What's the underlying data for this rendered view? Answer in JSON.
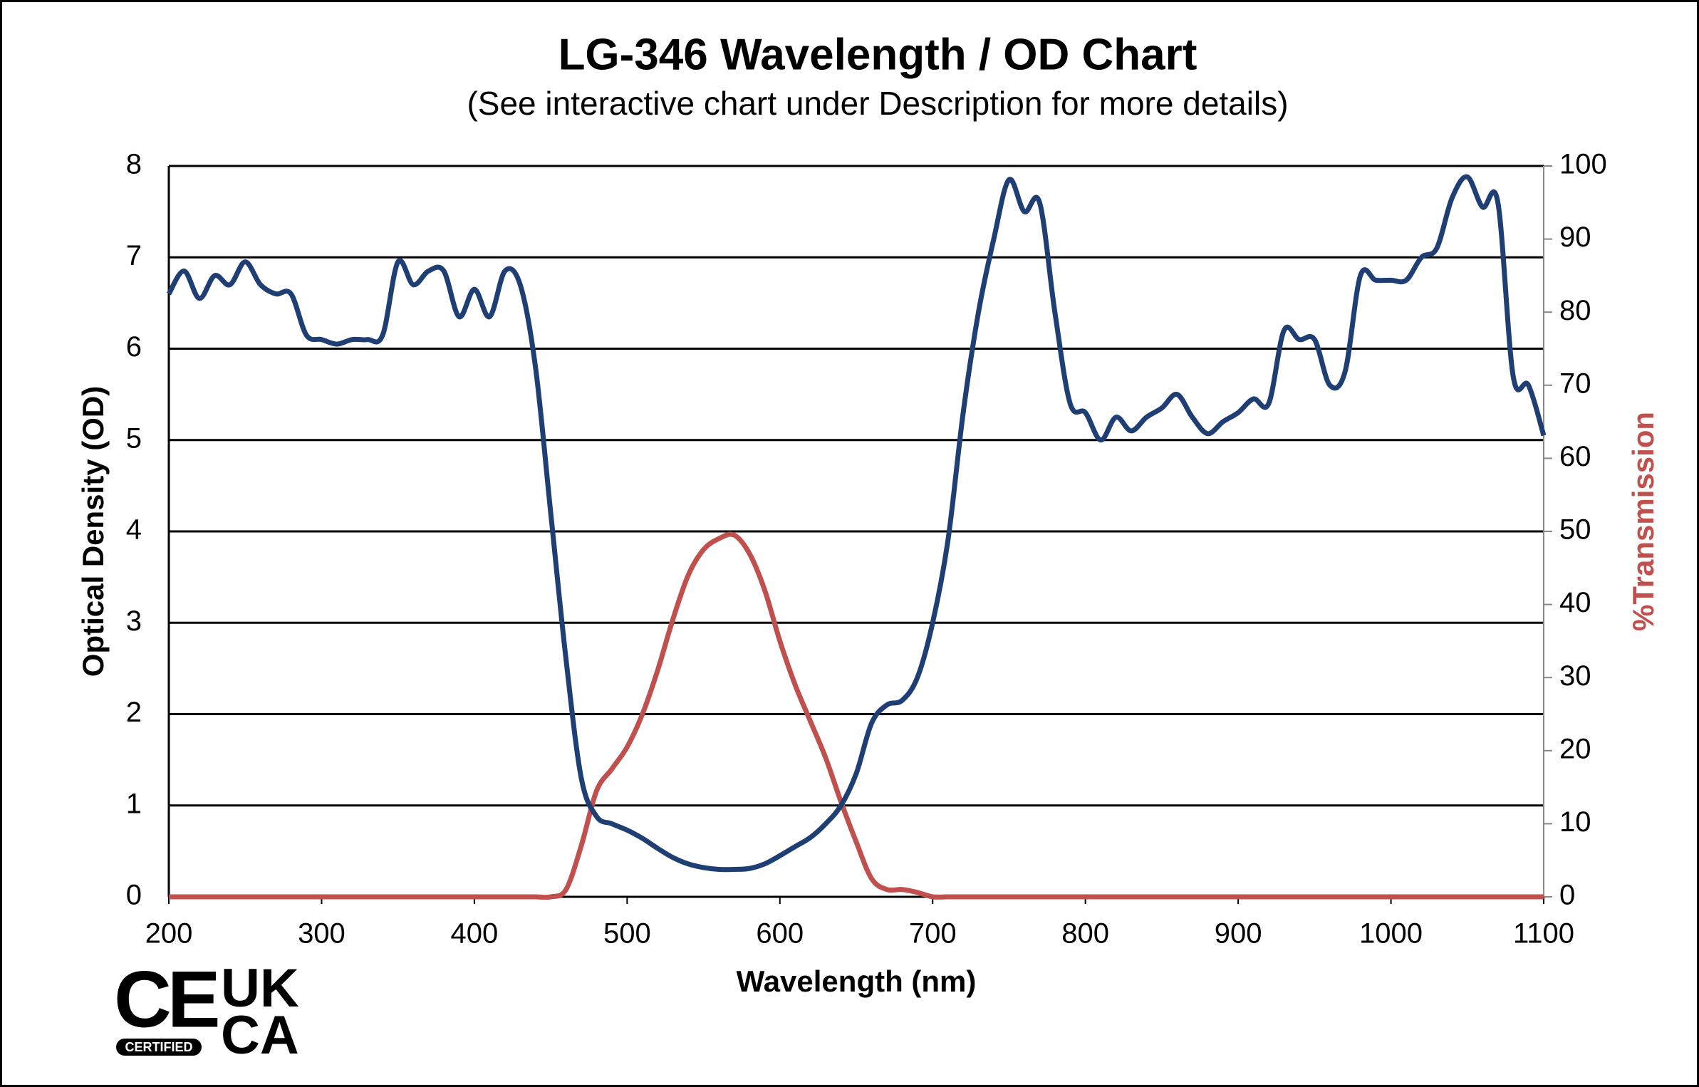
{
  "chart_data": {
    "type": "line",
    "title": "LG-346 Wavelength / OD Chart",
    "subtitle": "(See interactive chart under Description for more details)",
    "xlabel": "Wavelength (nm)",
    "ylabel": "Optical Density (OD)",
    "y2label": "%Transmission",
    "x": [
      200,
      210,
      220,
      230,
      240,
      250,
      260,
      270,
      280,
      290,
      300,
      310,
      320,
      330,
      340,
      350,
      360,
      370,
      380,
      390,
      400,
      410,
      420,
      430,
      440,
      450,
      460,
      470,
      480,
      490,
      500,
      510,
      520,
      530,
      540,
      550,
      560,
      570,
      580,
      590,
      600,
      610,
      620,
      630,
      640,
      650,
      660,
      670,
      680,
      690,
      700,
      710,
      720,
      730,
      740,
      750,
      760,
      770,
      780,
      790,
      800,
      810,
      820,
      830,
      840,
      850,
      860,
      870,
      880,
      890,
      900,
      910,
      920,
      930,
      940,
      950,
      960,
      970,
      980,
      990,
      1000,
      1010,
      1020,
      1030,
      1040,
      1050,
      1060,
      1070,
      1080,
      1090,
      1100
    ],
    "series": [
      {
        "name": "Optical Density",
        "color": "#1f3f74",
        "axis": "y",
        "values": [
          6.6,
          6.85,
          6.55,
          6.8,
          6.7,
          6.95,
          6.7,
          6.6,
          6.6,
          6.15,
          6.1,
          6.05,
          6.1,
          6.1,
          6.15,
          6.95,
          6.7,
          6.85,
          6.85,
          6.35,
          6.65,
          6.35,
          6.85,
          6.7,
          5.8,
          4.2,
          2.6,
          1.3,
          0.88,
          0.8,
          0.73,
          0.64,
          0.53,
          0.43,
          0.36,
          0.32,
          0.3,
          0.3,
          0.31,
          0.36,
          0.45,
          0.55,
          0.65,
          0.8,
          1.0,
          1.35,
          1.9,
          2.1,
          2.15,
          2.4,
          3.0,
          3.9,
          5.3,
          6.4,
          7.2,
          7.85,
          7.5,
          7.6,
          6.4,
          5.4,
          5.3,
          5.0,
          5.25,
          5.1,
          5.25,
          5.35,
          5.5,
          5.25,
          5.07,
          5.2,
          5.3,
          5.45,
          5.4,
          6.2,
          6.1,
          6.1,
          5.6,
          5.75,
          6.8,
          6.75,
          6.75,
          6.75,
          7.0,
          7.1,
          7.65,
          7.88,
          7.55,
          7.6,
          5.7,
          5.6,
          5.05
        ]
      },
      {
        "name": "%Transmission",
        "color": "#c0504d",
        "axis": "y2",
        "values": [
          0,
          0,
          0,
          0,
          0,
          0,
          0,
          0,
          0,
          0,
          0,
          0,
          0,
          0,
          0,
          0,
          0,
          0,
          0,
          0,
          0,
          0,
          0,
          0,
          0,
          0,
          1,
          7,
          14.5,
          17.5,
          20.5,
          25,
          31,
          38,
          44,
          47.5,
          49,
          49.5,
          47,
          42,
          35,
          29,
          24,
          19,
          13,
          7.5,
          2.5,
          1,
          1,
          0.6,
          0,
          0,
          0,
          0,
          0,
          0,
          0,
          0,
          0,
          0,
          0,
          0,
          0,
          0,
          0,
          0,
          0,
          0,
          0,
          0,
          0,
          0,
          0,
          0,
          0,
          0,
          0,
          0,
          0,
          0,
          0,
          0,
          0,
          0,
          0,
          0,
          0,
          0,
          0,
          0,
          0
        ]
      }
    ],
    "xlim": [
      200,
      1100
    ],
    "xticks": [
      200,
      300,
      400,
      500,
      600,
      700,
      800,
      900,
      1000,
      1100
    ],
    "ylim": [
      0,
      8
    ],
    "yticks": [
      0,
      1,
      2,
      3,
      4,
      5,
      6,
      7,
      8
    ],
    "y2lim": [
      0,
      100
    ],
    "y2ticks": [
      0,
      10,
      20,
      30,
      40,
      50,
      60,
      70,
      80,
      90,
      100
    ],
    "grid": true
  },
  "logo": {
    "ce": "CE",
    "certified": "CERTIFIED",
    "uk": "UK",
    "ca": "CA"
  }
}
